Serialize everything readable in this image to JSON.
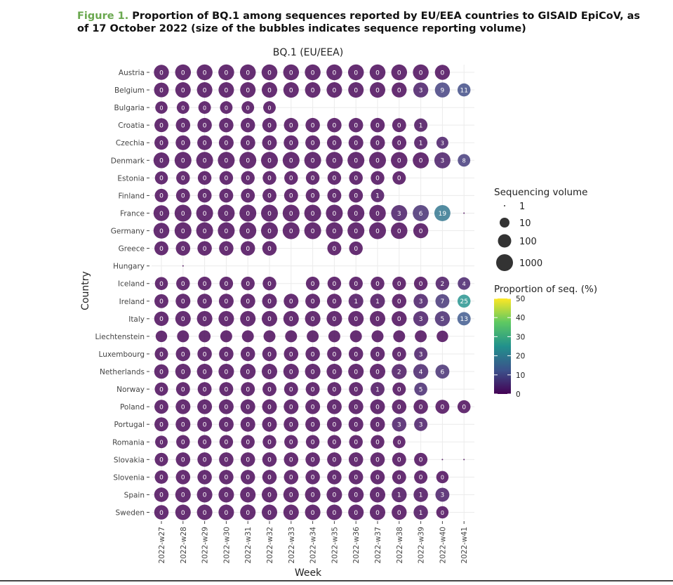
{
  "figure": {
    "label": "Figure 1.",
    "caption": "Proportion of BQ.1 among sequences reported by EU/EEA countries to GISAID EpiCoV, as of 17 October 2022 (size of the bubbles indicates sequence reporting volume)"
  },
  "chart_data": {
    "type": "scatter",
    "title": "BQ.1 (EU/EEA)",
    "xlabel": "Week",
    "ylabel": "Country",
    "weeks": [
      "2022-w27",
      "2022-w28",
      "2022-w29",
      "2022-w30",
      "2022-w31",
      "2022-w32",
      "2022-w33",
      "2022-w34",
      "2022-w35",
      "2022-w36",
      "2022-w37",
      "2022-w38",
      "2022-w39",
      "2022-w40",
      "2022-w41"
    ],
    "countries": [
      "Austria",
      "Belgium",
      "Bulgaria",
      "Croatia",
      "Czechia",
      "Denmark",
      "Estonia",
      "Finland",
      "France",
      "Germany",
      "Greece",
      "Hungary",
      "Iceland",
      "Ireland",
      "Italy",
      "Liechtenstein",
      "Luxembourg",
      "Netherlands",
      "Norway",
      "Poland",
      "Portugal",
      "Romania",
      "Slovakia",
      "Slovenia",
      "Spain",
      "Sweden"
    ],
    "size_legend": {
      "title": "Sequencing volume",
      "values": [
        1,
        10,
        100,
        1000
      ]
    },
    "color_legend": {
      "title": "Proportion of seq. (%)",
      "ticks": [
        0,
        10,
        20,
        30,
        40,
        50
      ],
      "range": [
        0,
        50
      ]
    },
    "grid": true,
    "legend_position": "right",
    "rows": {
      "Austria": {
        "pct": [
          0,
          0,
          0,
          0,
          0,
          0,
          0,
          0,
          0,
          0,
          0,
          0,
          0,
          0,
          null
        ],
        "vol": [
          300,
          500,
          500,
          500,
          500,
          500,
          500,
          500,
          500,
          500,
          500,
          500,
          500,
          300,
          null
        ]
      },
      "Belgium": {
        "pct": [
          0,
          0,
          0,
          0,
          0,
          0,
          0,
          0,
          0,
          0,
          0,
          0,
          3,
          9,
          11
        ],
        "vol": [
          250,
          400,
          400,
          400,
          400,
          400,
          400,
          400,
          400,
          400,
          400,
          300,
          300,
          300,
          80
        ]
      },
      "Bulgaria": {
        "pct": [
          0,
          0,
          0,
          0,
          0,
          0,
          null,
          null,
          null,
          null,
          null,
          null,
          null,
          null,
          null
        ],
        "vol": [
          50,
          60,
          60,
          60,
          60,
          60,
          null,
          null,
          null,
          null,
          null,
          null,
          null,
          null,
          null
        ]
      },
      "Croatia": {
        "pct": [
          0,
          0,
          0,
          0,
          0,
          0,
          0,
          0,
          0,
          0,
          0,
          0,
          1,
          null,
          null
        ],
        "vol": [
          150,
          200,
          200,
          200,
          200,
          200,
          200,
          200,
          200,
          200,
          200,
          150,
          100,
          null,
          null
        ]
      },
      "Czechia": {
        "pct": [
          0,
          0,
          0,
          0,
          0,
          0,
          0,
          0,
          0,
          0,
          0,
          0,
          1,
          3,
          null
        ],
        "vol": [
          150,
          250,
          250,
          250,
          250,
          250,
          250,
          250,
          250,
          250,
          250,
          200,
          100,
          40,
          null
        ]
      },
      "Denmark": {
        "pct": [
          0,
          0,
          0,
          0,
          0,
          0,
          0,
          0,
          0,
          0,
          0,
          0,
          0,
          3,
          8
        ],
        "vol": [
          500,
          1000,
          1000,
          1000,
          1000,
          1000,
          1000,
          1000,
          1000,
          1000,
          1000,
          800,
          600,
          600,
          60
        ]
      },
      "Estonia": {
        "pct": [
          0,
          0,
          0,
          0,
          0,
          0,
          0,
          0,
          0,
          0,
          0,
          0,
          null,
          null,
          null
        ],
        "vol": [
          80,
          120,
          120,
          120,
          120,
          120,
          120,
          120,
          120,
          120,
          120,
          100,
          null,
          null,
          null
        ]
      },
      "Finland": {
        "pct": [
          0,
          0,
          0,
          0,
          0,
          0,
          0,
          0,
          0,
          0,
          1,
          null,
          null,
          null,
          null
        ],
        "vol": [
          100,
          150,
          150,
          150,
          150,
          150,
          150,
          150,
          150,
          150,
          100,
          null,
          null,
          null,
          null
        ]
      },
      "France": {
        "pct": [
          0,
          0,
          0,
          0,
          0,
          0,
          0,
          0,
          0,
          0,
          0,
          3,
          6,
          19,
          0
        ],
        "vol": [
          500,
          1000,
          1000,
          1000,
          1000,
          1000,
          1000,
          1000,
          1000,
          1000,
          800,
          600,
          600,
          600,
          1
        ]
      },
      "Germany": {
        "pct": [
          0,
          0,
          0,
          0,
          0,
          0,
          0,
          0,
          0,
          0,
          0,
          0,
          0,
          null,
          null
        ],
        "vol": [
          500,
          1000,
          1000,
          1000,
          1000,
          1000,
          1000,
          1000,
          1000,
          1000,
          1000,
          800,
          300,
          null,
          null
        ]
      },
      "Greece": {
        "pct": [
          0,
          0,
          0,
          0,
          0,
          0,
          null,
          null,
          0,
          0,
          null,
          null,
          null,
          null,
          null
        ],
        "vol": [
          150,
          200,
          200,
          200,
          200,
          200,
          null,
          null,
          150,
          120,
          null,
          null,
          null,
          null,
          null
        ]
      },
      "Hungary": {
        "pct": [
          null,
          0,
          null,
          null,
          null,
          null,
          null,
          null,
          null,
          null,
          null,
          null,
          null,
          null,
          null
        ],
        "vol": [
          null,
          1,
          null,
          null,
          null,
          null,
          null,
          null,
          null,
          null,
          null,
          null,
          null,
          null,
          null
        ]
      },
      "Iceland": {
        "pct": [
          0,
          0,
          0,
          0,
          0,
          0,
          null,
          0,
          0,
          0,
          0,
          0,
          0,
          2,
          4
        ],
        "vol": [
          80,
          120,
          120,
          120,
          120,
          120,
          null,
          120,
          120,
          120,
          120,
          120,
          120,
          120,
          60
        ]
      },
      "Ireland": {
        "pct": [
          0,
          0,
          0,
          0,
          0,
          0,
          0,
          0,
          0,
          1,
          1,
          0,
          3,
          7,
          25
        ],
        "vol": [
          150,
          250,
          250,
          250,
          250,
          250,
          250,
          250,
          250,
          250,
          250,
          200,
          200,
          150,
          80
        ]
      },
      "Italy": {
        "pct": [
          0,
          0,
          0,
          0,
          0,
          0,
          0,
          0,
          0,
          0,
          0,
          0,
          3,
          5,
          13
        ],
        "vol": [
          200,
          400,
          400,
          400,
          400,
          400,
          400,
          400,
          400,
          400,
          400,
          300,
          300,
          300,
          100
        ]
      },
      "Liechtenstein": {
        "pct": [
          0,
          0,
          0,
          0,
          0,
          0,
          0,
          0,
          0,
          0,
          0,
          0,
          0,
          0,
          null
        ],
        "vol": [
          30,
          40,
          40,
          40,
          40,
          40,
          40,
          40,
          40,
          40,
          40,
          40,
          40,
          30,
          null
        ]
      },
      "Luxembourg": {
        "pct": [
          0,
          0,
          0,
          0,
          0,
          0,
          0,
          0,
          0,
          0,
          0,
          0,
          3,
          null,
          null
        ],
        "vol": [
          100,
          200,
          200,
          200,
          200,
          200,
          200,
          200,
          200,
          200,
          200,
          150,
          100,
          null,
          null
        ]
      },
      "Netherlands": {
        "pct": [
          0,
          0,
          0,
          0,
          0,
          0,
          0,
          0,
          0,
          0,
          0,
          2,
          4,
          6,
          null
        ],
        "vol": [
          200,
          400,
          400,
          400,
          400,
          400,
          400,
          400,
          400,
          400,
          400,
          300,
          300,
          150,
          null
        ]
      },
      "Norway": {
        "pct": [
          0,
          0,
          0,
          0,
          0,
          0,
          0,
          0,
          0,
          0,
          1,
          0,
          5,
          null,
          null
        ],
        "vol": [
          100,
          150,
          150,
          150,
          150,
          150,
          150,
          150,
          150,
          150,
          150,
          100,
          80,
          null,
          null
        ]
      },
      "Poland": {
        "pct": [
          0,
          0,
          0,
          0,
          0,
          0,
          0,
          0,
          0,
          0,
          0,
          0,
          0,
          0,
          0
        ],
        "vol": [
          150,
          250,
          250,
          250,
          250,
          250,
          250,
          250,
          250,
          250,
          250,
          200,
          200,
          150,
          80
        ]
      },
      "Portugal": {
        "pct": [
          0,
          0,
          0,
          0,
          0,
          0,
          0,
          0,
          0,
          0,
          0,
          3,
          3,
          null,
          null
        ],
        "vol": [
          150,
          250,
          250,
          250,
          250,
          250,
          250,
          250,
          250,
          250,
          250,
          200,
          100,
          null,
          null
        ]
      },
      "Romania": {
        "pct": [
          0,
          0,
          0,
          0,
          0,
          0,
          0,
          0,
          0,
          0,
          0,
          0,
          null,
          null,
          null
        ],
        "vol": [
          60,
          120,
          120,
          120,
          120,
          120,
          120,
          120,
          120,
          120,
          120,
          60,
          null,
          null,
          null
        ]
      },
      "Slovakia": {
        "pct": [
          0,
          0,
          0,
          0,
          0,
          0,
          0,
          0,
          0,
          0,
          0,
          0,
          0,
          0,
          0
        ],
        "vol": [
          100,
          200,
          200,
          200,
          200,
          200,
          200,
          200,
          200,
          200,
          200,
          150,
          100,
          1,
          1
        ]
      },
      "Slovenia": {
        "pct": [
          0,
          0,
          0,
          0,
          0,
          0,
          0,
          0,
          0,
          0,
          0,
          0,
          0,
          0,
          null
        ],
        "vol": [
          100,
          200,
          200,
          200,
          200,
          200,
          200,
          200,
          200,
          200,
          200,
          150,
          100,
          50,
          null
        ]
      },
      "Spain": {
        "pct": [
          0,
          0,
          0,
          0,
          0,
          0,
          0,
          0,
          0,
          0,
          0,
          1,
          1,
          3,
          null
        ],
        "vol": [
          200,
          400,
          400,
          400,
          400,
          400,
          400,
          400,
          400,
          400,
          400,
          300,
          200,
          150,
          null
        ]
      },
      "Sweden": {
        "pct": [
          0,
          0,
          0,
          0,
          0,
          0,
          0,
          0,
          0,
          0,
          0,
          0,
          1,
          0,
          null
        ],
        "vol": [
          200,
          400,
          400,
          400,
          400,
          400,
          400,
          400,
          400,
          400,
          400,
          300,
          200,
          50,
          null
        ]
      }
    }
  }
}
